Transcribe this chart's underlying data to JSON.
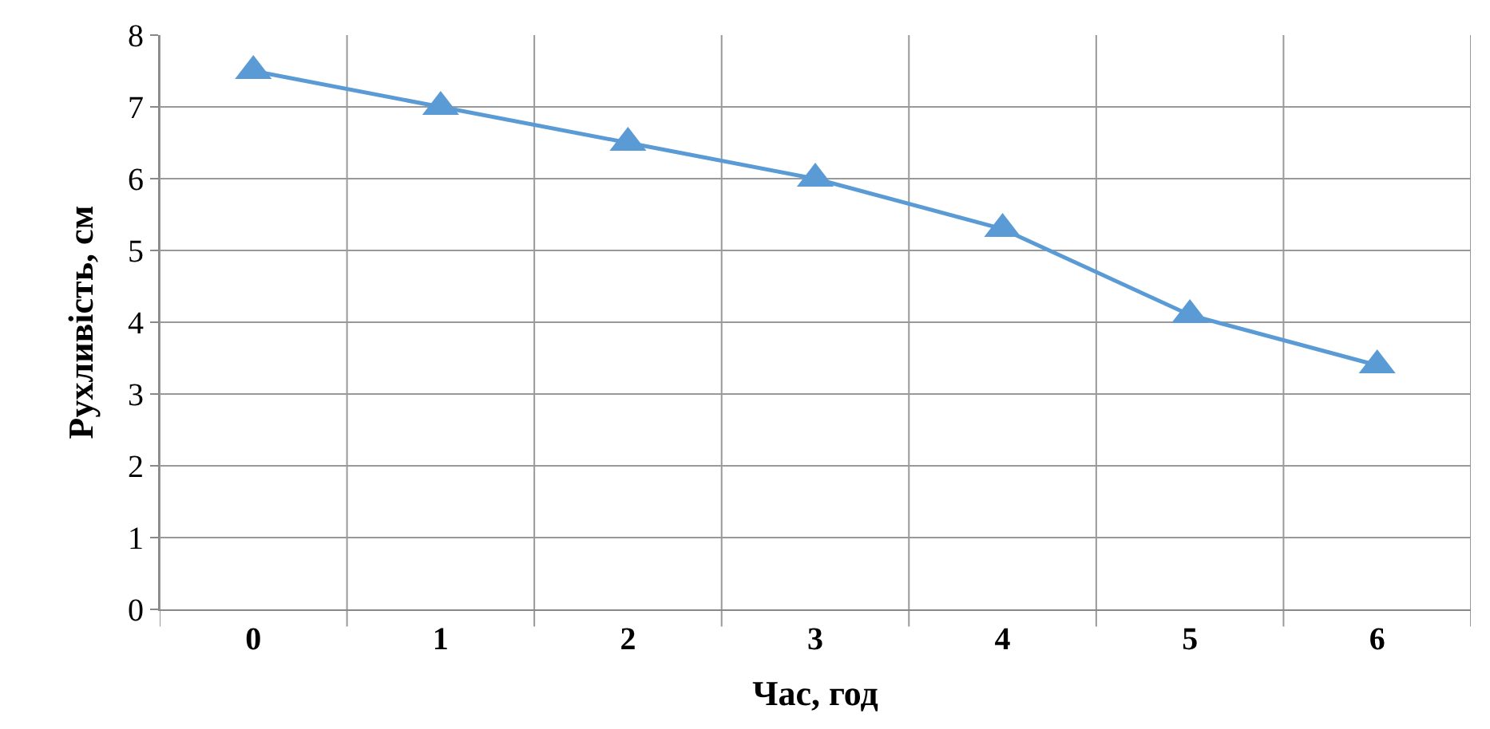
{
  "chart_data": {
    "type": "line",
    "xlabel": "Час, год",
    "ylabel": "Рухливість, см",
    "categories": [
      "0",
      "1",
      "2",
      "3",
      "4",
      "5",
      "6"
    ],
    "series": [
      {
        "color": "#5b9bd5",
        "values": [
          7.5,
          7.0,
          6.5,
          6.0,
          5.3,
          4.1,
          3.4
        ]
      }
    ],
    "ylim": [
      0,
      8
    ],
    "yticks": [
      0,
      1,
      2,
      3,
      4,
      5,
      6,
      7,
      8
    ],
    "grid": true,
    "marker": "triangle",
    "line_style": "solid",
    "legend": false
  }
}
